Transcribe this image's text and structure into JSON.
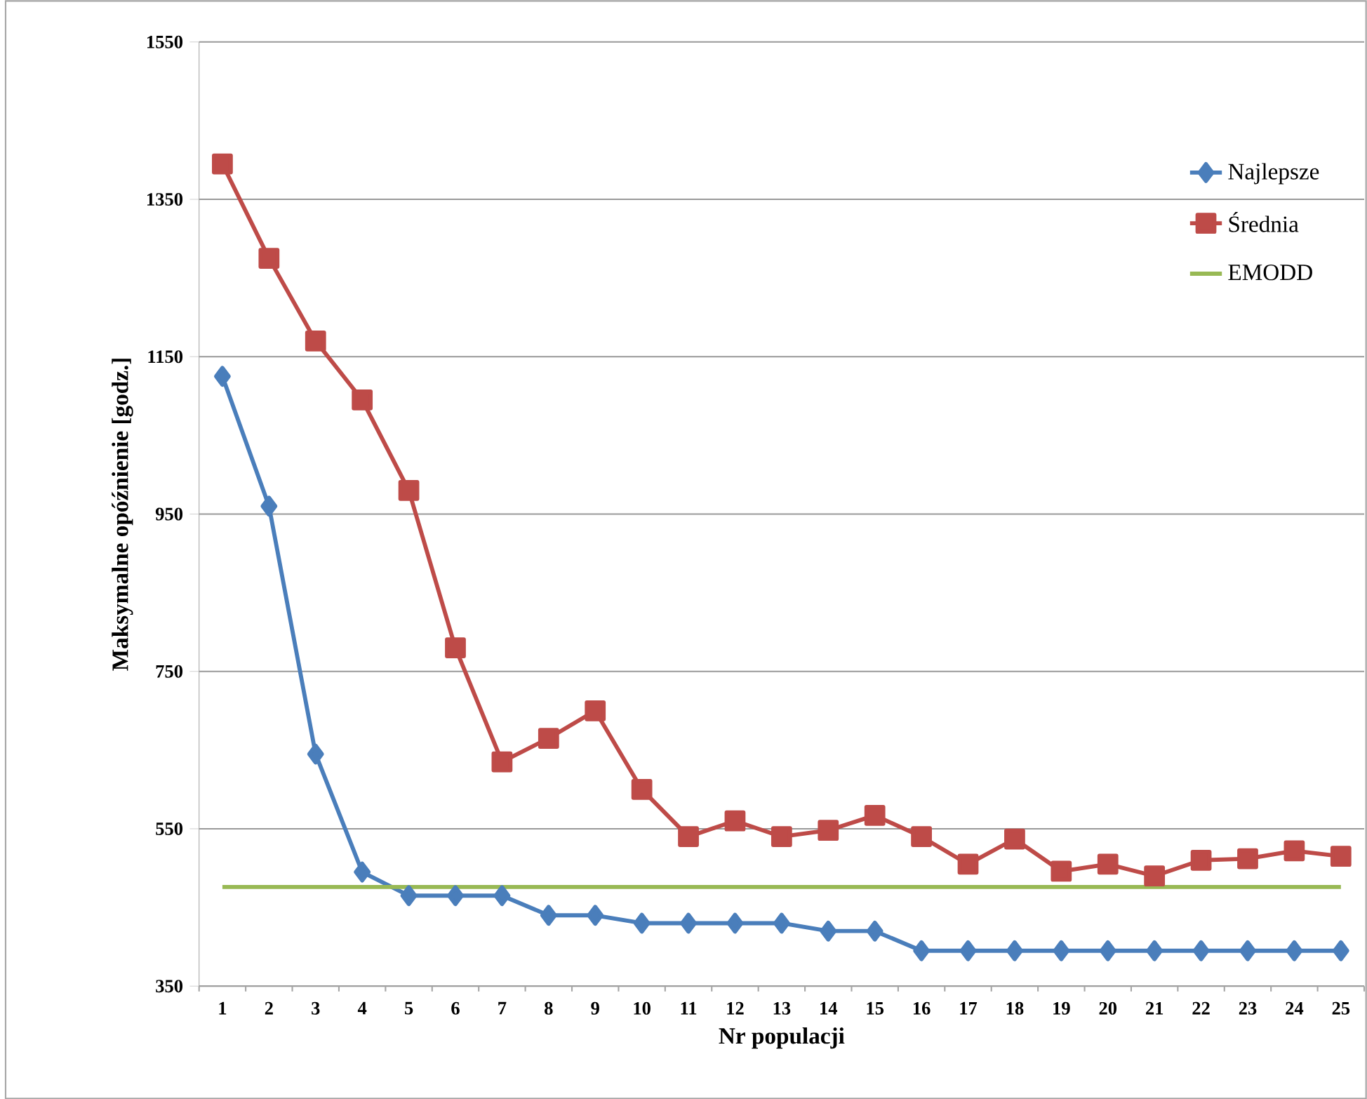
{
  "chart_data": {
    "type": "line",
    "xlabel": "Nr populacji",
    "ylabel": "Maksymalne opóźnienie [godz.]",
    "categories": [
      "1",
      "2",
      "3",
      "4",
      "5",
      "6",
      "7",
      "8",
      "9",
      "10",
      "11",
      "12",
      "13",
      "14",
      "15",
      "16",
      "17",
      "18",
      "19",
      "20",
      "21",
      "22",
      "23",
      "24",
      "25"
    ],
    "series": [
      {
        "name": "Najlepsze",
        "color": "#4a7ebb",
        "marker": "diamond",
        "values": [
          1125,
          960,
          645,
          495,
          465,
          465,
          465,
          440,
          440,
          430,
          430,
          430,
          430,
          420,
          420,
          395,
          395,
          395,
          395,
          395,
          395,
          395,
          395,
          395,
          395
        ]
      },
      {
        "name": "Średnia",
        "color": "#be4b48",
        "marker": "square",
        "values": [
          1395,
          1275,
          1170,
          1095,
          980,
          780,
          635,
          665,
          700,
          600,
          540,
          560,
          540,
          548,
          567,
          540,
          505,
          537,
          496,
          505,
          490,
          510,
          512,
          522,
          515
        ]
      },
      {
        "name": "EMODD",
        "color": "#98b954",
        "marker": "none",
        "values": [
          476,
          476,
          476,
          476,
          476,
          476,
          476,
          476,
          476,
          476,
          476,
          476,
          476,
          476,
          476,
          476,
          476,
          476,
          476,
          476,
          476,
          476,
          476,
          476,
          476
        ]
      }
    ],
    "ylim": [
      350,
      1550
    ],
    "yticks": [
      350,
      550,
      750,
      950,
      1150,
      1350,
      1550
    ],
    "grid": "y",
    "legend": "top right"
  }
}
